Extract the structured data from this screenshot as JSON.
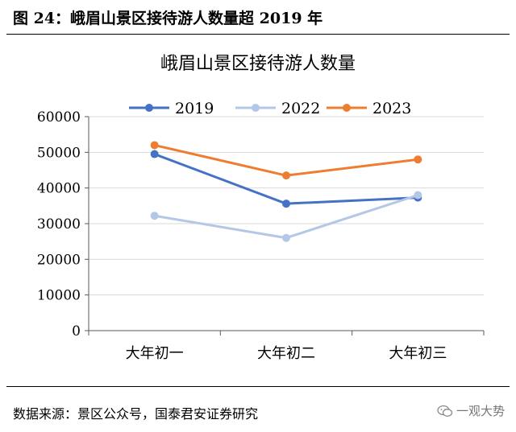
{
  "figure_caption": "图 24：峨眉山景区接待游人数量超 2019 年",
  "source_note": "数据来源：景区公众号，国泰君安证券研究",
  "watermark": {
    "text": "一观大势",
    "icon": "wechat-icon"
  },
  "chart_data": {
    "type": "line",
    "title": "峨眉山景区接待游人数量",
    "categories": [
      "大年初一",
      "大年初二",
      "大年初三"
    ],
    "series": [
      {
        "name": "2019",
        "values": [
          49500,
          35600,
          37300
        ],
        "color": "#4472C4"
      },
      {
        "name": "2022",
        "values": [
          32200,
          26000,
          38000
        ],
        "color": "#B4C7E7"
      },
      {
        "name": "2023",
        "values": [
          52000,
          43500,
          48000
        ],
        "color": "#ED7D31"
      }
    ],
    "ylim": [
      0,
      60000
    ],
    "yticks": [
      "0",
      "10000",
      "20000",
      "30000",
      "40000",
      "50000",
      "60000"
    ],
    "grid": "horizontal",
    "legend": "top-center",
    "colors": {
      "grid": "#D9D9D9",
      "axis": "#595959"
    }
  }
}
